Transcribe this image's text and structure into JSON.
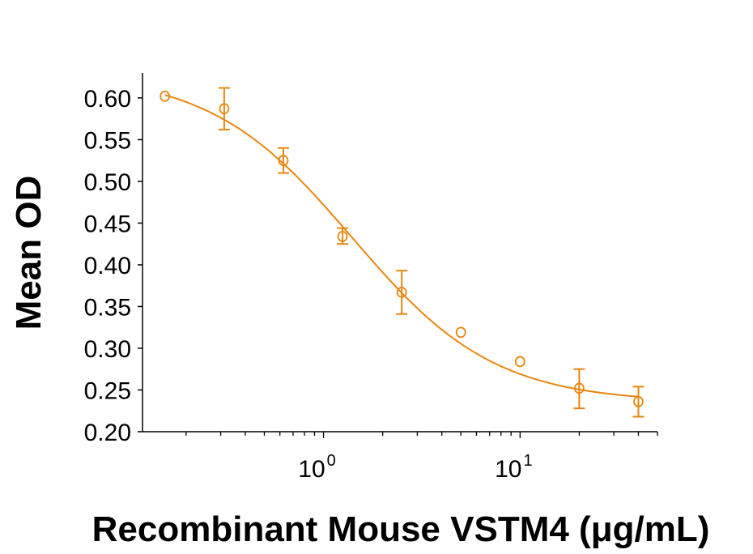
{
  "chart_data": {
    "type": "scatter",
    "title": "",
    "xlabel": "Recombinant Mouse VSTM4 (μg/mL)",
    "ylabel": "Mean OD",
    "x_scale": "log",
    "xlim": [
      0.12,
      50
    ],
    "ylim": [
      0.2,
      0.63
    ],
    "x_ticks": [
      {
        "value": 1,
        "base": "10",
        "exp": "0"
      },
      {
        "value": 10,
        "base": "10",
        "exp": "1"
      }
    ],
    "y_ticks": [
      "0.20",
      "0.25",
      "0.30",
      "0.35",
      "0.40",
      "0.45",
      "0.50",
      "0.55",
      "0.60"
    ],
    "grid": false,
    "color": "#E8860F",
    "marker": "open-circle",
    "fit_curve": "sigmoidal",
    "series": [
      {
        "x": [
          0.156,
          0.3125,
          0.625,
          1.25,
          2.5,
          5,
          10,
          20,
          40
        ],
        "y": [
          0.602,
          0.587,
          0.525,
          0.434,
          0.367,
          0.319,
          0.284,
          0.252,
          0.236
        ],
        "error_low": [
          null,
          0.562,
          0.51,
          0.425,
          0.341,
          null,
          null,
          0.228,
          0.218
        ],
        "error_high": [
          null,
          0.612,
          0.54,
          0.444,
          0.393,
          null,
          null,
          0.275,
          0.254
        ]
      }
    ]
  }
}
